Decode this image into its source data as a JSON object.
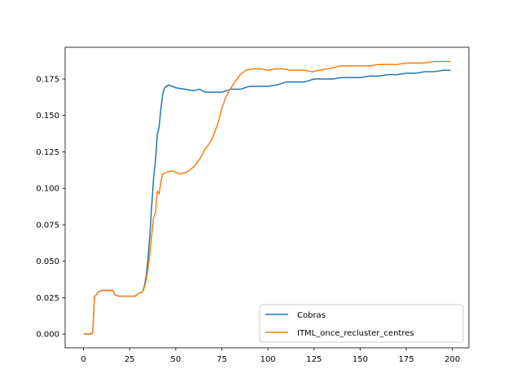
{
  "chart_data": {
    "type": "line",
    "xlim": [
      -9.95,
      208.95
    ],
    "ylim": [
      -0.0094,
      0.1968
    ],
    "x_ticks": [
      0,
      25,
      50,
      75,
      100,
      125,
      150,
      175,
      200
    ],
    "y_ticks": [
      0.0,
      0.025,
      0.05,
      0.075,
      0.1,
      0.125,
      0.15,
      0.175
    ],
    "x_tick_labels": [
      "0",
      "25",
      "50",
      "75",
      "100",
      "125",
      "150",
      "175",
      "200"
    ],
    "y_tick_labels": [
      "0.000",
      "0.025",
      "0.050",
      "0.075",
      "0.100",
      "0.125",
      "0.150",
      "0.175"
    ],
    "grid": false,
    "legend_position": "lower-right",
    "series": [
      {
        "name": "Cobras",
        "color": "#1f77b4",
        "points": [
          [
            0,
            0.0
          ],
          [
            4,
            0.0
          ],
          [
            5,
            0.001
          ],
          [
            6,
            0.026
          ],
          [
            7,
            0.027
          ],
          [
            8,
            0.029
          ],
          [
            10,
            0.03
          ],
          [
            16,
            0.03
          ],
          [
            17,
            0.027
          ],
          [
            19,
            0.026
          ],
          [
            28,
            0.026
          ],
          [
            30,
            0.028
          ],
          [
            32,
            0.029
          ],
          [
            33,
            0.033
          ],
          [
            34,
            0.04
          ],
          [
            35,
            0.052
          ],
          [
            36,
            0.068
          ],
          [
            37,
            0.088
          ],
          [
            38,
            0.107
          ],
          [
            39,
            0.118
          ],
          [
            40,
            0.137
          ],
          [
            41,
            0.142
          ],
          [
            42,
            0.155
          ],
          [
            43,
            0.165
          ],
          [
            44,
            0.169
          ],
          [
            46,
            0.171
          ],
          [
            48,
            0.17
          ],
          [
            50,
            0.169
          ],
          [
            55,
            0.168
          ],
          [
            60,
            0.167
          ],
          [
            63,
            0.168
          ],
          [
            66,
            0.166
          ],
          [
            70,
            0.166
          ],
          [
            75,
            0.166
          ],
          [
            80,
            0.168
          ],
          [
            85,
            0.168
          ],
          [
            90,
            0.17
          ],
          [
            95,
            0.17
          ],
          [
            100,
            0.17
          ],
          [
            105,
            0.171
          ],
          [
            110,
            0.173
          ],
          [
            115,
            0.173
          ],
          [
            120,
            0.173
          ],
          [
            125,
            0.175
          ],
          [
            130,
            0.175
          ],
          [
            135,
            0.175
          ],
          [
            140,
            0.176
          ],
          [
            145,
            0.176
          ],
          [
            150,
            0.176
          ],
          [
            155,
            0.177
          ],
          [
            160,
            0.177
          ],
          [
            165,
            0.178
          ],
          [
            170,
            0.178
          ],
          [
            175,
            0.179
          ],
          [
            180,
            0.179
          ],
          [
            185,
            0.18
          ],
          [
            190,
            0.18
          ],
          [
            195,
            0.181
          ],
          [
            199,
            0.181
          ]
        ]
      },
      {
        "name": "ITML_once_recluster_centres",
        "color": "#ff7f0e",
        "points": [
          [
            0,
            0.0
          ],
          [
            4,
            0.0
          ],
          [
            5,
            0.001
          ],
          [
            6,
            0.026
          ],
          [
            7,
            0.027
          ],
          [
            8,
            0.029
          ],
          [
            10,
            0.03
          ],
          [
            16,
            0.03
          ],
          [
            17,
            0.027
          ],
          [
            19,
            0.026
          ],
          [
            28,
            0.026
          ],
          [
            30,
            0.028
          ],
          [
            32,
            0.029
          ],
          [
            33,
            0.032
          ],
          [
            34,
            0.037
          ],
          [
            35,
            0.045
          ],
          [
            36,
            0.055
          ],
          [
            37,
            0.068
          ],
          [
            38,
            0.08
          ],
          [
            39,
            0.083
          ],
          [
            40,
            0.098
          ],
          [
            41,
            0.096
          ],
          [
            42,
            0.105
          ],
          [
            43,
            0.11
          ],
          [
            45,
            0.111
          ],
          [
            48,
            0.112
          ],
          [
            52,
            0.11
          ],
          [
            56,
            0.111
          ],
          [
            60,
            0.115
          ],
          [
            63,
            0.12
          ],
          [
            66,
            0.127
          ],
          [
            69,
            0.132
          ],
          [
            71,
            0.138
          ],
          [
            73,
            0.145
          ],
          [
            75,
            0.155
          ],
          [
            77,
            0.162
          ],
          [
            79,
            0.167
          ],
          [
            82,
            0.173
          ],
          [
            85,
            0.178
          ],
          [
            88,
            0.181
          ],
          [
            92,
            0.182
          ],
          [
            96,
            0.182
          ],
          [
            100,
            0.181
          ],
          [
            104,
            0.182
          ],
          [
            108,
            0.182
          ],
          [
            112,
            0.181
          ],
          [
            116,
            0.181
          ],
          [
            120,
            0.181
          ],
          [
            124,
            0.18
          ],
          [
            128,
            0.181
          ],
          [
            132,
            0.182
          ],
          [
            136,
            0.183
          ],
          [
            140,
            0.184
          ],
          [
            145,
            0.184
          ],
          [
            150,
            0.184
          ],
          [
            155,
            0.184
          ],
          [
            160,
            0.185
          ],
          [
            165,
            0.185
          ],
          [
            170,
            0.185
          ],
          [
            175,
            0.186
          ],
          [
            180,
            0.186
          ],
          [
            185,
            0.186
          ],
          [
            190,
            0.187
          ],
          [
            195,
            0.187
          ],
          [
            199,
            0.187
          ]
        ]
      }
    ]
  }
}
